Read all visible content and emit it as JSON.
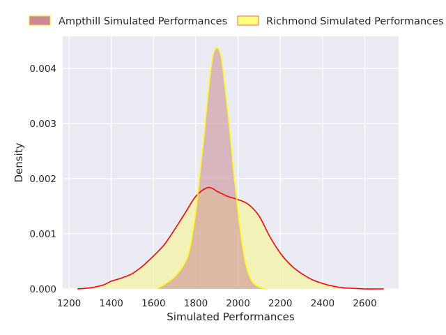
{
  "chart_data": {
    "type": "area",
    "xlabel": "Simulated Performances",
    "ylabel": "Density",
    "xlim": [
      1170,
      2760
    ],
    "ylim": [
      0,
      0.00458
    ],
    "xticks": [
      1200,
      1400,
      1600,
      1800,
      2000,
      2200,
      2400,
      2600
    ],
    "yticks": [
      0.0,
      0.001,
      0.002,
      0.003,
      0.004
    ],
    "xtick_labels": [
      "1200",
      "1400",
      "1600",
      "1800",
      "2000",
      "2200",
      "2400",
      "2600"
    ],
    "ytick_labels": [
      "0.000",
      "0.001",
      "0.002",
      "0.003",
      "0.004"
    ],
    "grid": true,
    "legend_placement": "top-center, above plot",
    "series": [
      {
        "name": "Ampthill Simulated Performances",
        "fill_color": "#c98a93",
        "line_color": "#ffff00",
        "x": [
          1615,
          1650,
          1700,
          1740,
          1770,
          1800,
          1820,
          1840,
          1860,
          1880,
          1900,
          1920,
          1940,
          1960,
          1980,
          2000,
          2020,
          2040,
          2060,
          2080,
          2110,
          2140
        ],
        "y": [
          0.0,
          8e-05,
          0.00022,
          0.00042,
          0.0007,
          0.0014,
          0.0021,
          0.0028,
          0.0036,
          0.0042,
          0.00437,
          0.0042,
          0.0036,
          0.0029,
          0.0021,
          0.0014,
          0.0008,
          0.0004,
          0.00018,
          8e-05,
          2e-05,
          0.0
        ]
      },
      {
        "name": "Richmond Simulated Performances",
        "fill_color": "#f5f5a0",
        "line_color": "#ff0000",
        "x": [
          1240,
          1300,
          1360,
          1400,
          1450,
          1500,
          1550,
          1600,
          1650,
          1700,
          1750,
          1800,
          1850,
          1880,
          1900,
          1950,
          2000,
          2050,
          2100,
          2150,
          2200,
          2250,
          2300,
          2350,
          2400,
          2450,
          2500,
          2550,
          2600,
          2650,
          2690
        ],
        "y": [
          0.0,
          2e-05,
          7e-05,
          0.00014,
          0.0002,
          0.00028,
          0.00042,
          0.0006,
          0.0008,
          0.00108,
          0.00138,
          0.00168,
          0.00183,
          0.00182,
          0.00177,
          0.00168,
          0.00162,
          0.00153,
          0.00132,
          0.00095,
          0.00065,
          0.00043,
          0.00028,
          0.00017,
          0.0001,
          5e-05,
          2e-05,
          1e-05,
          0.0,
          0.0,
          0.0
        ]
      }
    ]
  }
}
